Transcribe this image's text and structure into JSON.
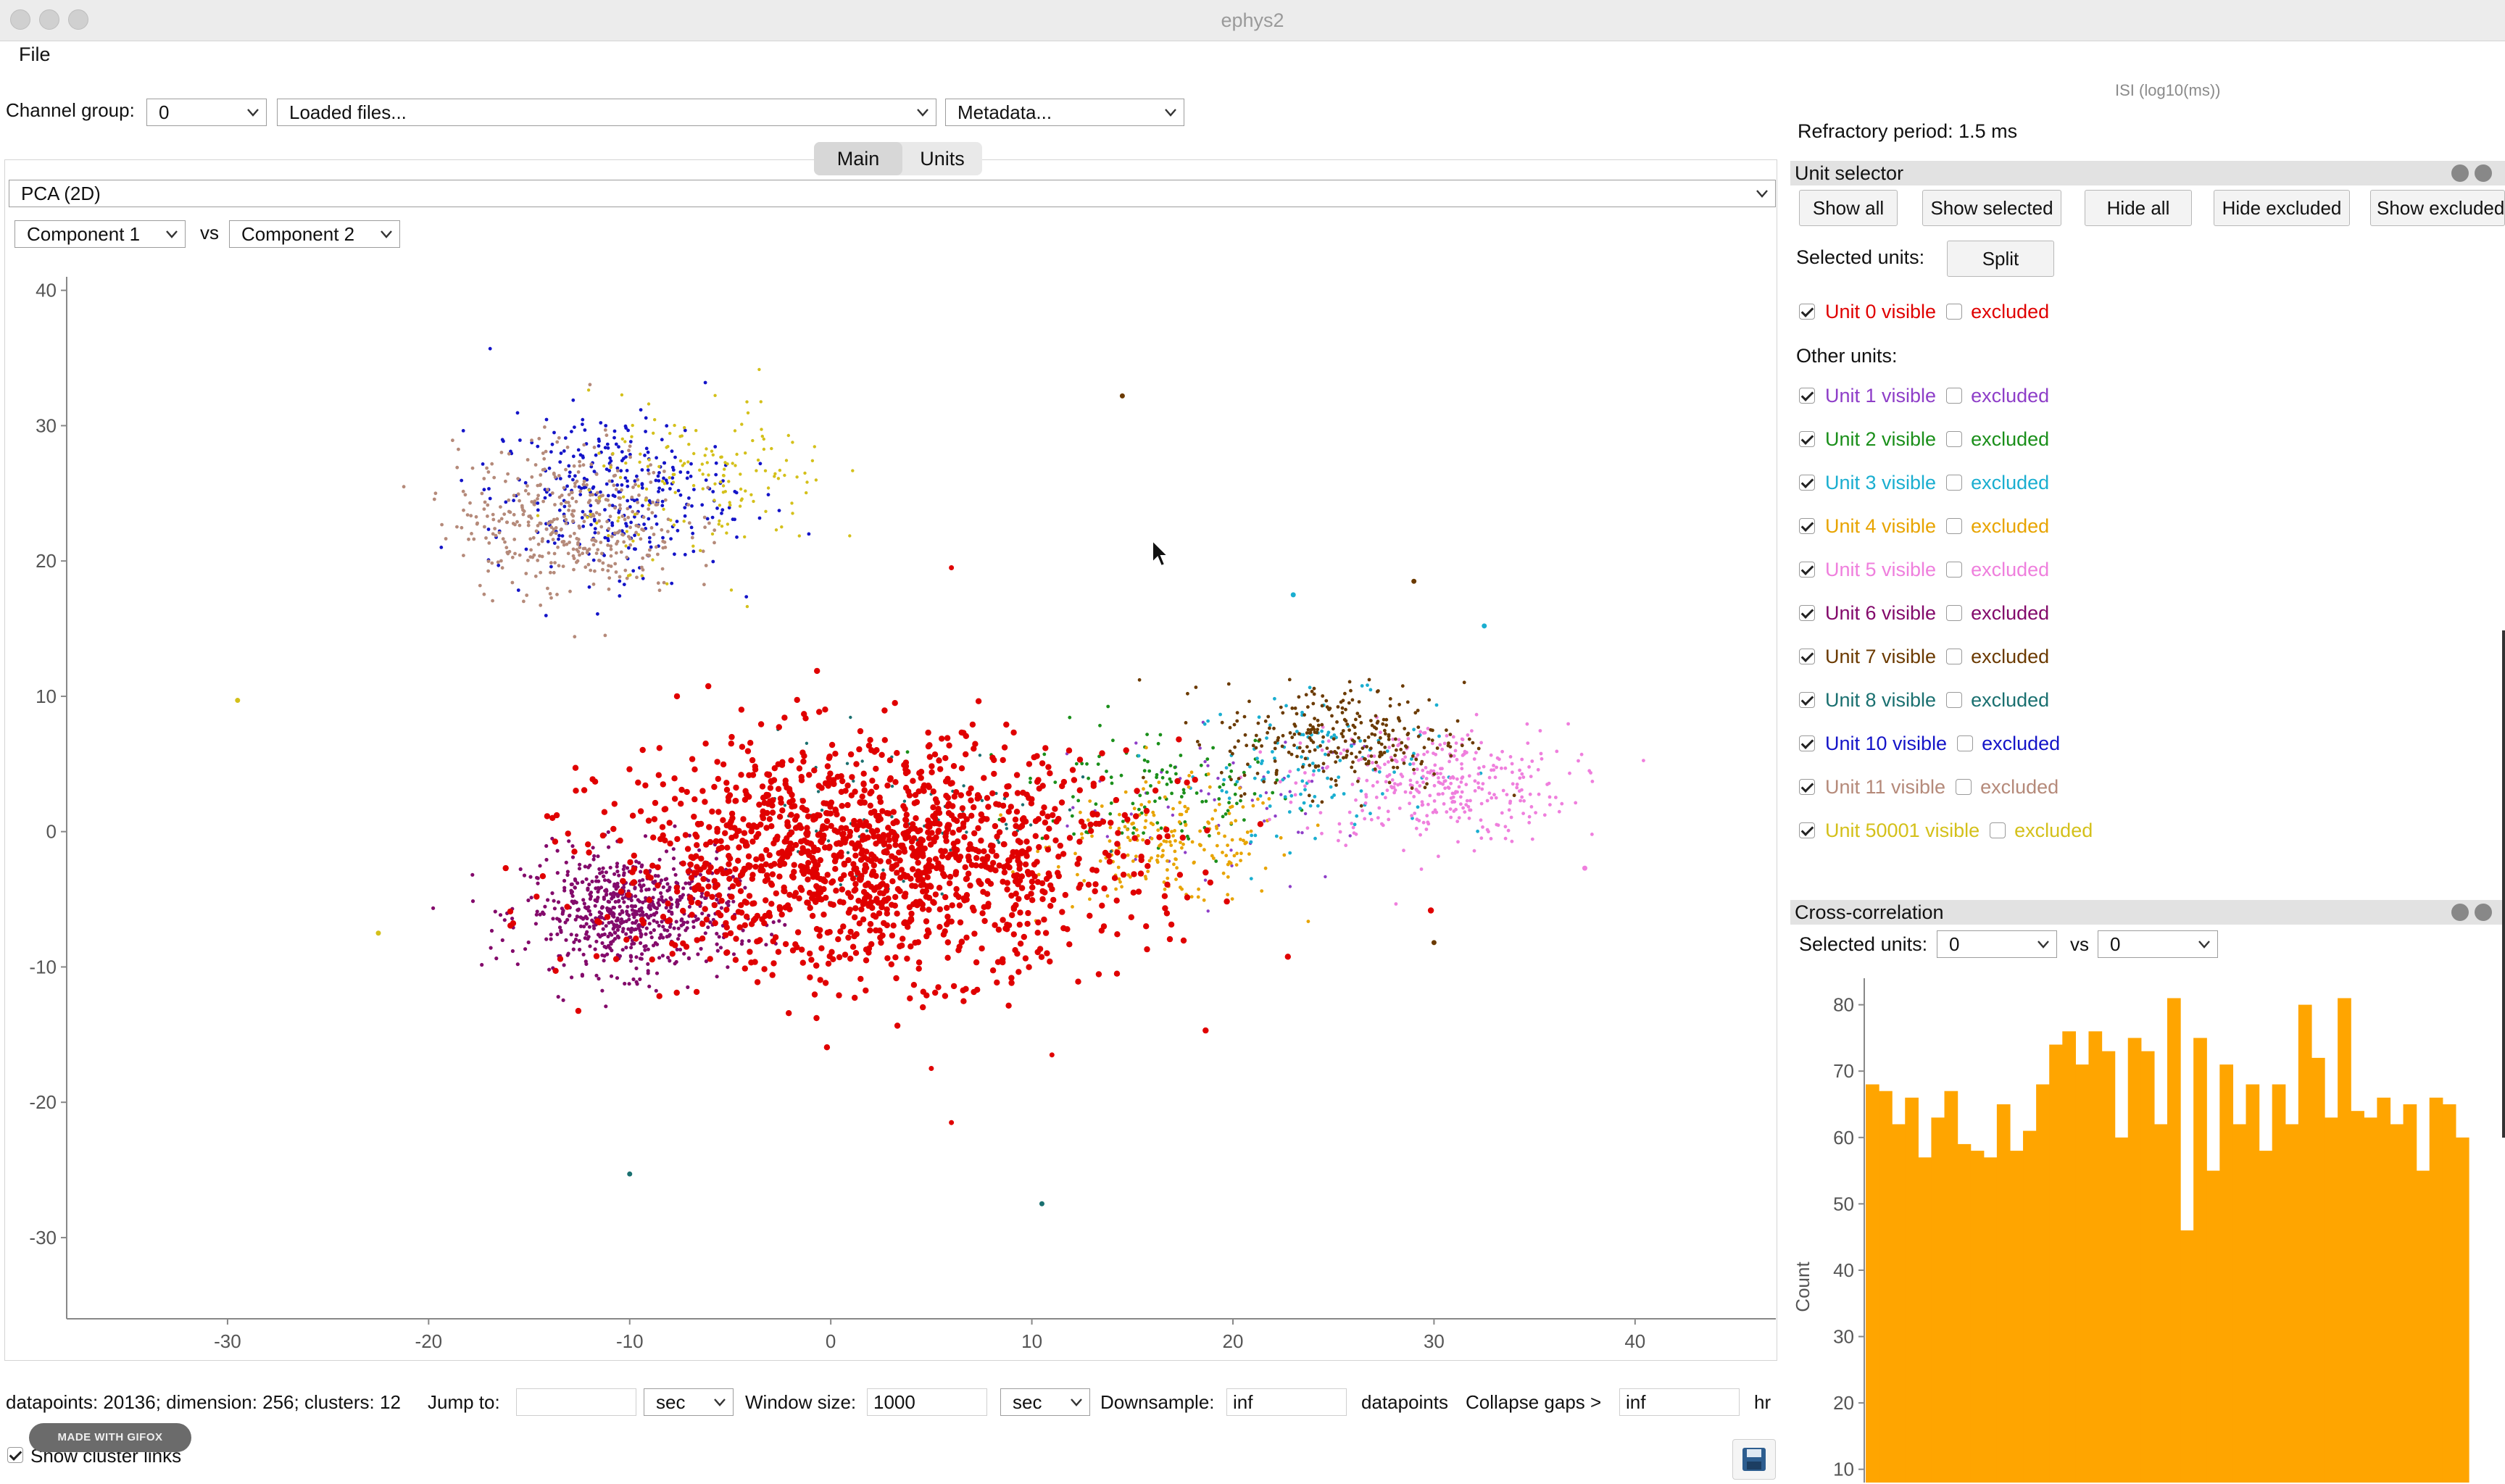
{
  "window": {
    "title": "ephys2"
  },
  "menu": {
    "file": "File"
  },
  "toolbar": {
    "channel_group_label": "Channel group:",
    "channel_group_value": "0",
    "loaded_files": "Loaded files...",
    "metadata": "Metadata..."
  },
  "tabs": {
    "main": "Main",
    "units": "Units"
  },
  "view": {
    "mode": "PCA (2D)",
    "x_component": "Component 1",
    "vs": "vs",
    "y_component": "Component 2"
  },
  "chart_data": {
    "type": "scatter",
    "title": "",
    "xlabel": "",
    "ylabel": "",
    "xlim": [
      -38,
      47
    ],
    "ylim": [
      -36,
      41
    ],
    "xticks": [
      -30,
      -20,
      -10,
      0,
      10,
      20,
      30,
      40
    ],
    "yticks": [
      -30,
      -20,
      -10,
      0,
      10,
      20,
      30,
      40
    ],
    "series": [
      {
        "name": "Unit 0",
        "color": "#e00000",
        "center": [
          2,
          -2
        ],
        "spread": [
          6.5,
          4.2
        ],
        "count": 1500,
        "size": 4.2
      },
      {
        "name": "Unit 1",
        "color": "#8e3ec8",
        "center": [
          20,
          2
        ],
        "spread": [
          4,
          3
        ],
        "count": 60,
        "size": 2.2
      },
      {
        "name": "Unit 2",
        "color": "#1a8f1a",
        "center": [
          16,
          3
        ],
        "spread": [
          3.5,
          2.5
        ],
        "count": 120,
        "size": 2.4
      },
      {
        "name": "Unit 3",
        "color": "#1aaed0",
        "center": [
          24,
          5
        ],
        "spread": [
          3,
          2.5
        ],
        "count": 120,
        "size": 2.4
      },
      {
        "name": "Unit 4",
        "color": "#e8a400",
        "center": [
          17,
          -1
        ],
        "spread": [
          3,
          2.2
        ],
        "count": 200,
        "size": 2.4
      },
      {
        "name": "Unit 5",
        "color": "#ef7fdd",
        "center": [
          30,
          3.5
        ],
        "spread": [
          3.3,
          2.2
        ],
        "count": 350,
        "size": 2.4
      },
      {
        "name": "Unit 6",
        "color": "#830a6b",
        "center": [
          -10,
          -6
        ],
        "spread": [
          2.6,
          2.2
        ],
        "count": 700,
        "size": 2.6
      },
      {
        "name": "Unit 7",
        "color": "#6b3a00",
        "center": [
          25.5,
          7
        ],
        "spread": [
          3,
          2
        ],
        "count": 280,
        "size": 2.4
      },
      {
        "name": "Unit 8",
        "color": "#1a7070",
        "center": [
          3,
          1
        ],
        "spread": [
          4,
          3
        ],
        "count": 90,
        "size": 2.2
      },
      {
        "name": "Unit 10",
        "color": "#1414c8",
        "center": [
          -11,
          25
        ],
        "spread": [
          3,
          3
        ],
        "count": 320,
        "size": 2.4
      },
      {
        "name": "Unit 11",
        "color": "#b58a7a",
        "center": [
          -13,
          23
        ],
        "spread": [
          2.8,
          2.8
        ],
        "count": 420,
        "size": 2.4
      },
      {
        "name": "Unit 50001",
        "color": "#d4c01a",
        "center": [
          -6,
          26
        ],
        "spread": [
          3,
          3
        ],
        "count": 160,
        "size": 2.2
      }
    ],
    "outliers": [
      {
        "x": 14.5,
        "y": 32.2,
        "color": "#6b3a00"
      },
      {
        "x": -29.5,
        "y": 9.7,
        "color": "#d4c01a"
      },
      {
        "x": 6,
        "y": 19.5,
        "color": "#e00000"
      },
      {
        "x": 23,
        "y": 17.5,
        "color": "#1aaed0"
      },
      {
        "x": 29,
        "y": 18.5,
        "color": "#6b3a00"
      },
      {
        "x": 32.5,
        "y": 15.2,
        "color": "#1aaed0"
      },
      {
        "x": -10,
        "y": -25.3,
        "color": "#1a7070"
      },
      {
        "x": 10.5,
        "y": -27.5,
        "color": "#1a7070"
      },
      {
        "x": 5,
        "y": -17.5,
        "color": "#e00000"
      },
      {
        "x": 11,
        "y": -16.5,
        "color": "#e00000"
      },
      {
        "x": 30,
        "y": -8.2,
        "color": "#6b3a00"
      },
      {
        "x": 6,
        "y": -21.5,
        "color": "#e00000"
      },
      {
        "x": -22.5,
        "y": -7.5,
        "color": "#d4c01a"
      },
      {
        "x": 37.5,
        "y": -2.7,
        "color": "#ef7fdd"
      }
    ]
  },
  "status": {
    "info": "datapoints: 20136; dimension: 256; clusters: 12",
    "jump_to_label": "Jump to:",
    "jump_to_value": "",
    "jump_unit": "sec",
    "window_size_label": "Window size:",
    "window_size_value": "1000",
    "window_unit": "sec",
    "downsample_label": "Downsample:",
    "downsample_value": "inf",
    "datapoints_label": "datapoints",
    "collapse_label": "Collapse gaps >",
    "collapse_value": "inf",
    "collapse_unit": "hr",
    "show_cluster_links": "Show cluster links",
    "gifox_badge": "MADE WITH GIFOX"
  },
  "right_panel": {
    "isi_label": "ISI (log10(ms))",
    "refractory": "Refractory period: 1.5 ms",
    "unit_selector_title": "Unit selector",
    "buttons": [
      "Show all",
      "Show selected",
      "Hide all",
      "Hide excluded",
      "Show excluded"
    ],
    "selected_units_label": "Selected units:",
    "split_button": "Split",
    "selected": [
      {
        "label": "Unit 0 visible",
        "excluded": "excluded",
        "color": "#e00000",
        "visible": true
      }
    ],
    "other_units_label": "Other units:",
    "others": [
      {
        "label": "Unit 1 visible",
        "excluded": "excluded",
        "color": "#8e3ec8",
        "visible": true
      },
      {
        "label": "Unit 2 visible",
        "excluded": "excluded",
        "color": "#1a8f1a",
        "visible": true
      },
      {
        "label": "Unit 3 visible",
        "excluded": "excluded",
        "color": "#1aaed0",
        "visible": true
      },
      {
        "label": "Unit 4 visible",
        "excluded": "excluded",
        "color": "#e8a400",
        "visible": true
      },
      {
        "label": "Unit 5 visible",
        "excluded": "excluded",
        "color": "#ef7fdd",
        "visible": true
      },
      {
        "label": "Unit 6 visible",
        "excluded": "excluded",
        "color": "#830a6b",
        "visible": true
      },
      {
        "label": "Unit 7 visible",
        "excluded": "excluded",
        "color": "#6b3a00",
        "visible": true
      },
      {
        "label": "Unit 8 visible",
        "excluded": "excluded",
        "color": "#1a7070",
        "visible": true
      },
      {
        "label": "Unit 10 visible",
        "excluded": "excluded",
        "color": "#1414c8",
        "visible": true
      },
      {
        "label": "Unit 11 visible",
        "excluded": "excluded",
        "color": "#b58a7a",
        "visible": true
      },
      {
        "label": "Unit 50001 visible",
        "excluded": "excluded",
        "color": "#d4c01a",
        "visible": true
      }
    ],
    "xcorr_title": "Cross-correlation",
    "xcorr_selected_label": "Selected units:",
    "xcorr_a": "0",
    "xcorr_vs": "vs",
    "xcorr_b": "0",
    "xcorr_chart": {
      "type": "bar",
      "ylabel": "Count",
      "color": "#ffa500",
      "yticks": [
        10,
        20,
        30,
        40,
        50,
        60,
        70,
        80
      ],
      "ylim": [
        8,
        84
      ],
      "values": [
        68,
        67,
        62,
        66,
        57,
        63,
        67,
        59,
        58,
        57,
        65,
        58,
        61,
        68,
        74,
        76,
        71,
        76,
        73,
        60,
        75,
        73,
        62,
        81,
        46,
        75,
        55,
        71,
        62,
        68,
        58,
        68,
        62,
        80,
        72,
        63,
        81,
        64,
        63,
        66,
        62,
        65,
        55,
        66,
        65,
        60
      ]
    }
  }
}
